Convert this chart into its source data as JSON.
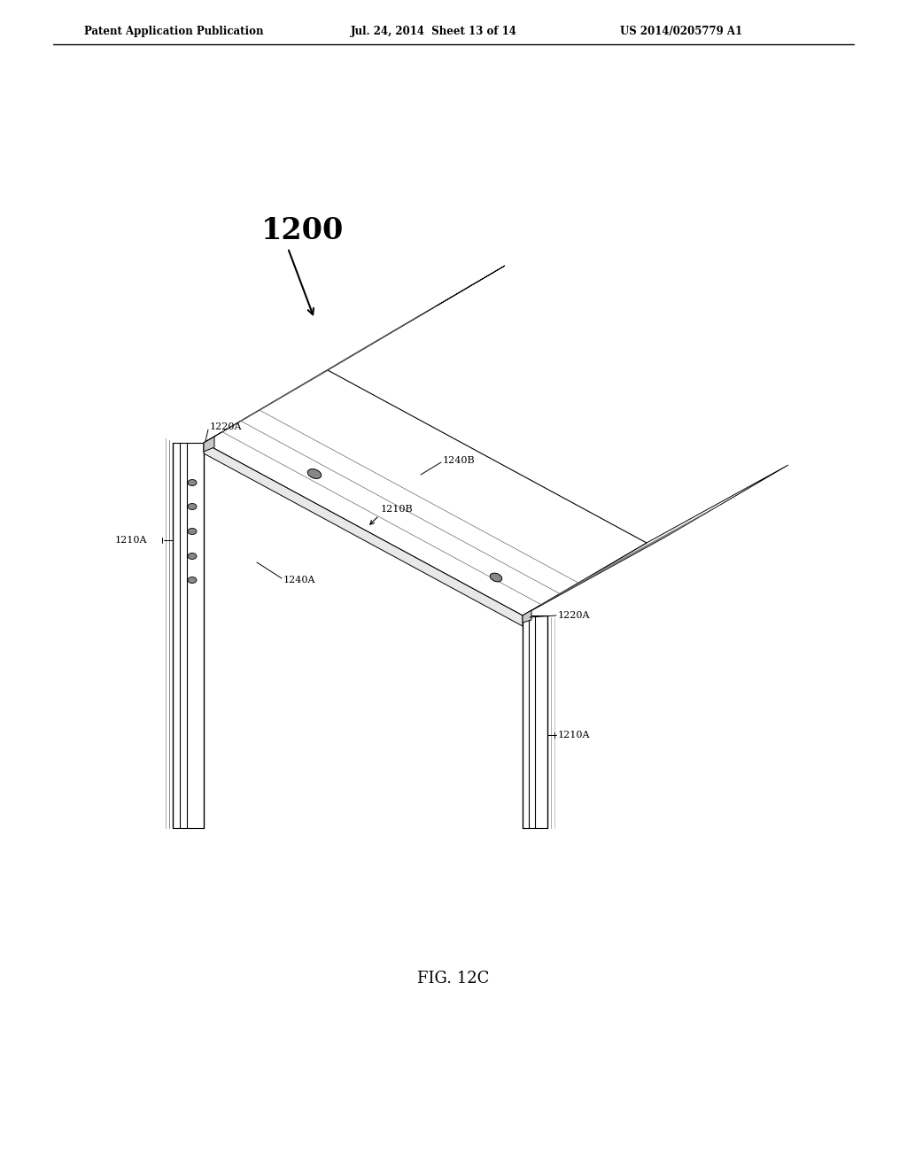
{
  "bg_color": "#ffffff",
  "line_color": "#000000",
  "title_header_left": "Patent Application Publication",
  "title_header_mid": "Jul. 24, 2014  Sheet 13 of 14",
  "title_header_right": "US 2014/0205779 A1",
  "fig_label": "FIG. 12C",
  "label_1200": "1200",
  "label_1220A_1": "1220A",
  "label_1220A_2": "1220A",
  "label_1210A_1": "1210A",
  "label_1210A_2": "1210A",
  "label_1210B": "1210B",
  "label_1240A": "1240A",
  "label_1240B": "1240B"
}
